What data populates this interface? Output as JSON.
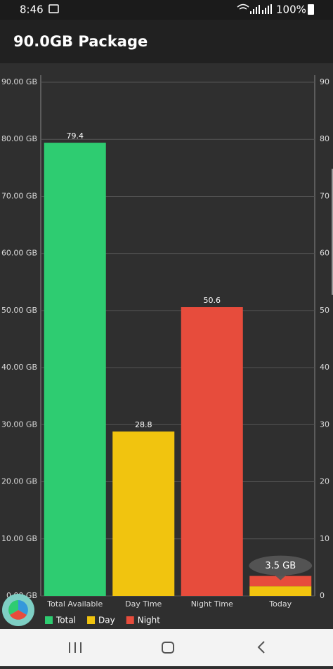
{
  "status_bar": {
    "time": "8:46",
    "battery": "100%"
  },
  "app_bar": {
    "title": "90.0GB Package"
  },
  "chart_data": {
    "type": "bar",
    "categories": [
      "Total Available",
      "Day Time",
      "Night Time",
      "Today"
    ],
    "series": [
      {
        "name": "Total",
        "color": "#2ecc71",
        "values": [
          79.4,
          null,
          null,
          null
        ]
      },
      {
        "name": "Day",
        "color": "#f1c40f",
        "values": [
          null,
          28.8,
          null,
          1.7
        ]
      },
      {
        "name": "Night",
        "color": "#e74c3c",
        "values": [
          null,
          null,
          50.6,
          1.8
        ]
      }
    ],
    "stacked": true,
    "ylim": [
      0,
      90
    ],
    "yticks": [
      {
        "value": 0,
        "label": "0.00 GB"
      },
      {
        "value": 10,
        "label": "10.00 GB"
      },
      {
        "value": 20,
        "label": "20.00 GB"
      },
      {
        "value": 30,
        "label": "30.00 GB"
      },
      {
        "value": 40,
        "label": "40.00 GB"
      },
      {
        "value": 50,
        "label": "50.00 GB"
      },
      {
        "value": 60,
        "label": "60.00 GB"
      },
      {
        "value": 70,
        "label": "70.00 GB"
      },
      {
        "value": 80,
        "label": "80.00 GB"
      },
      {
        "value": 90,
        "label": "90.00 GB"
      }
    ],
    "y2lim": [
      0,
      90
    ],
    "y2ticks": [
      0,
      10,
      20,
      30,
      40,
      50,
      60,
      70,
      80,
      90
    ],
    "grid": true,
    "legend": "bottom-left",
    "tooltip": "3.5 GB"
  }
}
